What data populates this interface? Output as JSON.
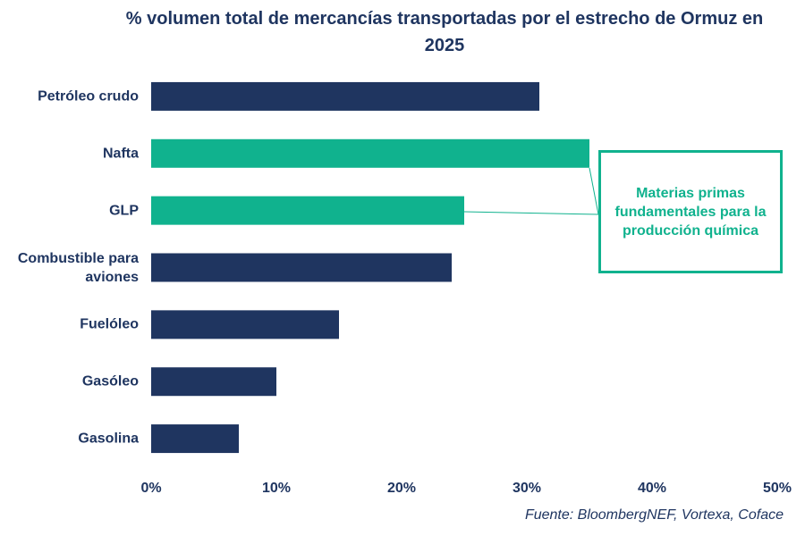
{
  "chart_data": {
    "type": "bar",
    "orientation": "horizontal",
    "title": "% volumen total de mercancías transportadas por el estrecho de Ormuz en 2025",
    "categories": [
      "Petróleo crudo",
      "Nafta",
      "GLP",
      "Combustible para aviones",
      "Fuelóleo",
      "Gasóleo",
      "Gasolina"
    ],
    "values": [
      31,
      35,
      25,
      24,
      15,
      10,
      7
    ],
    "colors": [
      "#1f3560",
      "#10b28e",
      "#10b28e",
      "#1f3560",
      "#1f3560",
      "#1f3560",
      "#1f3560"
    ],
    "xlim": [
      0,
      50
    ],
    "xticks": [
      {
        "value": 0,
        "label": "0%"
      },
      {
        "value": 10,
        "label": "10%"
      },
      {
        "value": 20,
        "label": "20%"
      },
      {
        "value": 30,
        "label": "30%"
      },
      {
        "value": 40,
        "label": "40%"
      },
      {
        "value": 50,
        "label": "50%"
      }
    ],
    "grid": false,
    "annotation": {
      "text": "Materias primas fundamentales para la producción química",
      "color": "#10b28e"
    },
    "source": "Fuente: BloombergNEF, Vortexa, Coface"
  }
}
